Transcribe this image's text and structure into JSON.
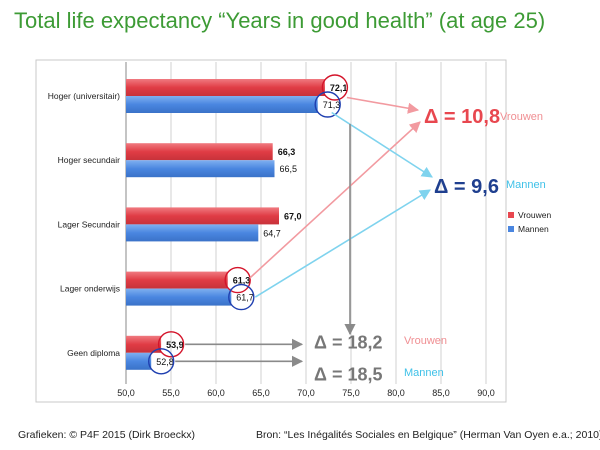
{
  "header": {
    "title": "Total life expectancy “Years in good health” (at age 25)"
  },
  "footer": {
    "credit": "Grafieken: © P4F 2015 (Dirk Broeckx)",
    "source": "Bron: “Les Inégalités Sociales en Belgique” (Herman Van Oyen e.a.; 2010)"
  },
  "chart_data": {
    "type": "bar",
    "orientation": "horizontal",
    "categories": [
      "Hoger (universitair)",
      "Hoger secundair",
      "Lager Secundair",
      "Lager onderwijs",
      "Geen diploma"
    ],
    "series": [
      {
        "name": "Vrouwen",
        "values": [
          72.1,
          66.3,
          67.0,
          61.3,
          53.9
        ],
        "labels": [
          "72,1",
          "66,3",
          "67,0",
          "61,3",
          "53,9"
        ],
        "color": "#e8474f"
      },
      {
        "name": "Mannen",
        "values": [
          71.3,
          66.5,
          64.7,
          61.7,
          52.8
        ],
        "labels": [
          "71,3",
          "66,5",
          "64,7",
          "61,7",
          "52,8"
        ],
        "color": "#4a86e0"
      }
    ],
    "xlim": [
      50,
      90
    ],
    "ticks": [
      50,
      55,
      60,
      65,
      70,
      75,
      80,
      85,
      90
    ],
    "tick_labels": [
      "50,0",
      "55,0",
      "60,0",
      "65,0",
      "70,0",
      "75,0",
      "80,0",
      "85,0",
      "90,0"
    ],
    "grid": true,
    "legend_position": "right",
    "annotations": [
      {
        "delta": "Δ = 10,8",
        "label": "Vrouwen",
        "color": "#e8474f",
        "label_color": "#f08f93"
      },
      {
        "delta": "Δ = 9,6",
        "label": "Mannen",
        "color": "#1f3f8f",
        "label_color": "#3fc1e8"
      },
      {
        "delta": "Δ = 18,2",
        "label": "Vrouwen",
        "color": "#777777",
        "label_color": "#f08f93"
      },
      {
        "delta": "Δ = 18,5",
        "label": "Mannen",
        "color": "#777777",
        "label_color": "#3fc1e8"
      }
    ]
  }
}
